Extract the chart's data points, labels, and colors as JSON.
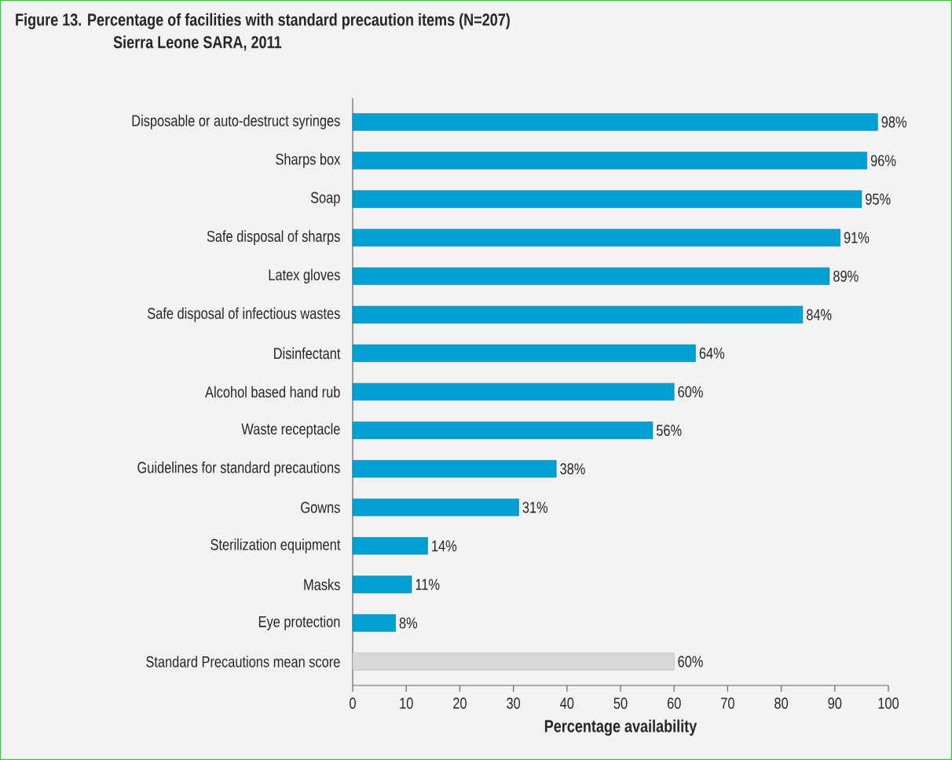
{
  "chart_data": {
    "type": "bar",
    "orientation": "horizontal",
    "title": "Figure 13. Percentage of facilities with standard precaution items (N=207)",
    "subtitle": "Sierra Leone SARA, 2011",
    "xlabel": "Percentage availability",
    "categories": [
      "Disposable or auto-destruct syringes",
      "Sharps box",
      "Soap",
      "Safe disposal of sharps",
      "Latex gloves",
      "Safe disposal of infectious wastes",
      "Disinfectant",
      "Alcohol based hand rub",
      "Waste receptacle",
      "Guidelines for standard precautions",
      "Gowns",
      "Sterilization equipment",
      "Masks",
      "Eye protection",
      "Standard Precautions mean score"
    ],
    "values": [
      98,
      96,
      95,
      91,
      89,
      84,
      64,
      60,
      56,
      38,
      31,
      14,
      11,
      8,
      60
    ],
    "value_labels": [
      "98%",
      "96%",
      "95%",
      "91%",
      "89%",
      "84%",
      "64%",
      "60%",
      "56%",
      "38%",
      "31%",
      "14%",
      "11%",
      "8%",
      "60%"
    ],
    "colors": [
      "#009fd4",
      "#009fd4",
      "#009fd4",
      "#009fd4",
      "#009fd4",
      "#009fd4",
      "#009fd4",
      "#009fd4",
      "#009fd4",
      "#009fd4",
      "#009fd4",
      "#009fd4",
      "#009fd4",
      "#009fd4",
      "#d9d9d9"
    ],
    "xlim": [
      0,
      100
    ],
    "xticks": [
      0,
      10,
      20,
      30,
      40,
      50,
      60,
      70,
      80,
      90,
      100
    ]
  }
}
